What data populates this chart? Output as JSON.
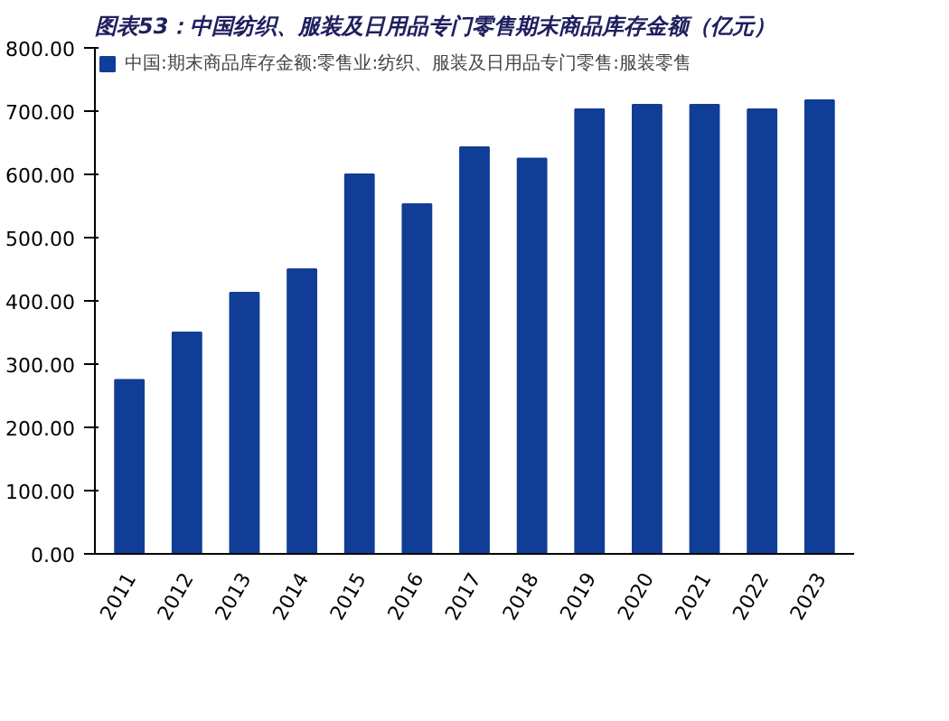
{
  "chart_data": {
    "type": "bar",
    "title": "图表53：中国纺织、服装及日用品专门零售期末商品库存金额（亿元）",
    "categories": [
      "2011",
      "2012",
      "2013",
      "2014",
      "2015",
      "2016",
      "2017",
      "2018",
      "2019",
      "2020",
      "2021",
      "2022",
      "2023"
    ],
    "series": [
      {
        "name": "中国:期末商品库存金额:零售业:纺织、服装及日用品专门零售:服装零售",
        "color": "#103d96",
        "values": [
          275,
          350,
          413,
          450,
          600,
          553,
          643,
          625,
          703,
          710,
          710,
          703,
          717
        ]
      }
    ],
    "ylim": [
      0,
      800
    ],
    "yticks": [
      {
        "value": 0,
        "label": "0.00"
      },
      {
        "value": 100,
        "label": "100.00"
      },
      {
        "value": 200,
        "label": "200.00"
      },
      {
        "value": 300,
        "label": "300.00"
      },
      {
        "value": 400,
        "label": "400.00"
      },
      {
        "value": 500,
        "label": "500.00"
      },
      {
        "value": 600,
        "label": "600.00"
      },
      {
        "value": 700,
        "label": "700.00"
      },
      {
        "value": 800,
        "label": "800.00"
      }
    ],
    "legend": "top left",
    "grid": false
  }
}
